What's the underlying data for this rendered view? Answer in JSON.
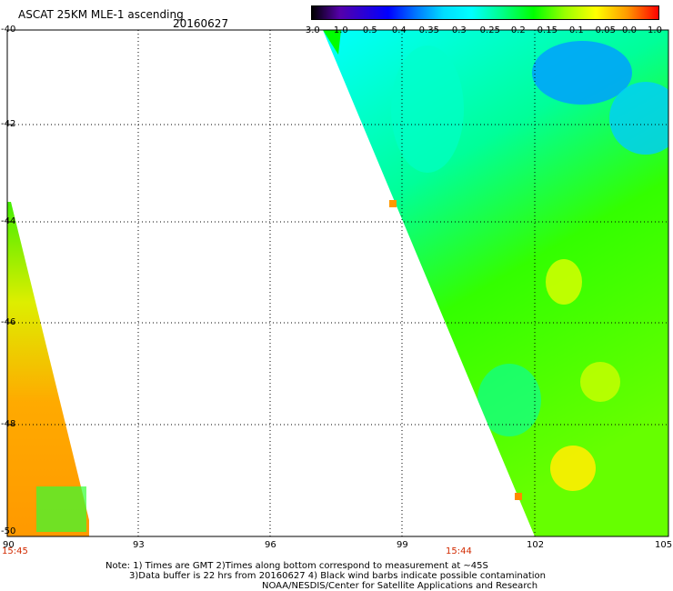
{
  "title": "ASCAT 25KM MLE-1 ascending",
  "date": "20160627",
  "colorbar": {
    "labels": [
      "-3.0",
      "-1.0",
      "-0.5",
      "-0.4",
      "-0.35",
      "-0.3",
      "-0.25",
      "-0.2",
      "-0.15",
      "-0.1",
      "-0.05",
      "0.0",
      "1.0"
    ],
    "colors": [
      "#000000",
      "#5500aa",
      "#0000ff",
      "#0088ff",
      "#00d0ff",
      "#00ffff",
      "#00ff99",
      "#00ff00",
      "#88ff00",
      "#ffff00",
      "#ffa500",
      "#ff5500",
      "#ff0000"
    ]
  },
  "latitude_labels": [
    "-40",
    "-42",
    "-44",
    "-46",
    "-48",
    "-50"
  ],
  "longitude_labels": [
    "90",
    "93",
    "96",
    "99",
    "102",
    "105"
  ],
  "times": {
    "left": "15:45",
    "middle": "15:44"
  },
  "notes": [
    "Note: 1) Times are GMT 2)Times along bottom correspond to measurement at ~45S",
    "3)Data buffer is 22 hrs from 20160627 4) Black wind barbs indicate possible contamination",
    "NOAA/NESDIS/Center for Satellite Applications and Research"
  ]
}
